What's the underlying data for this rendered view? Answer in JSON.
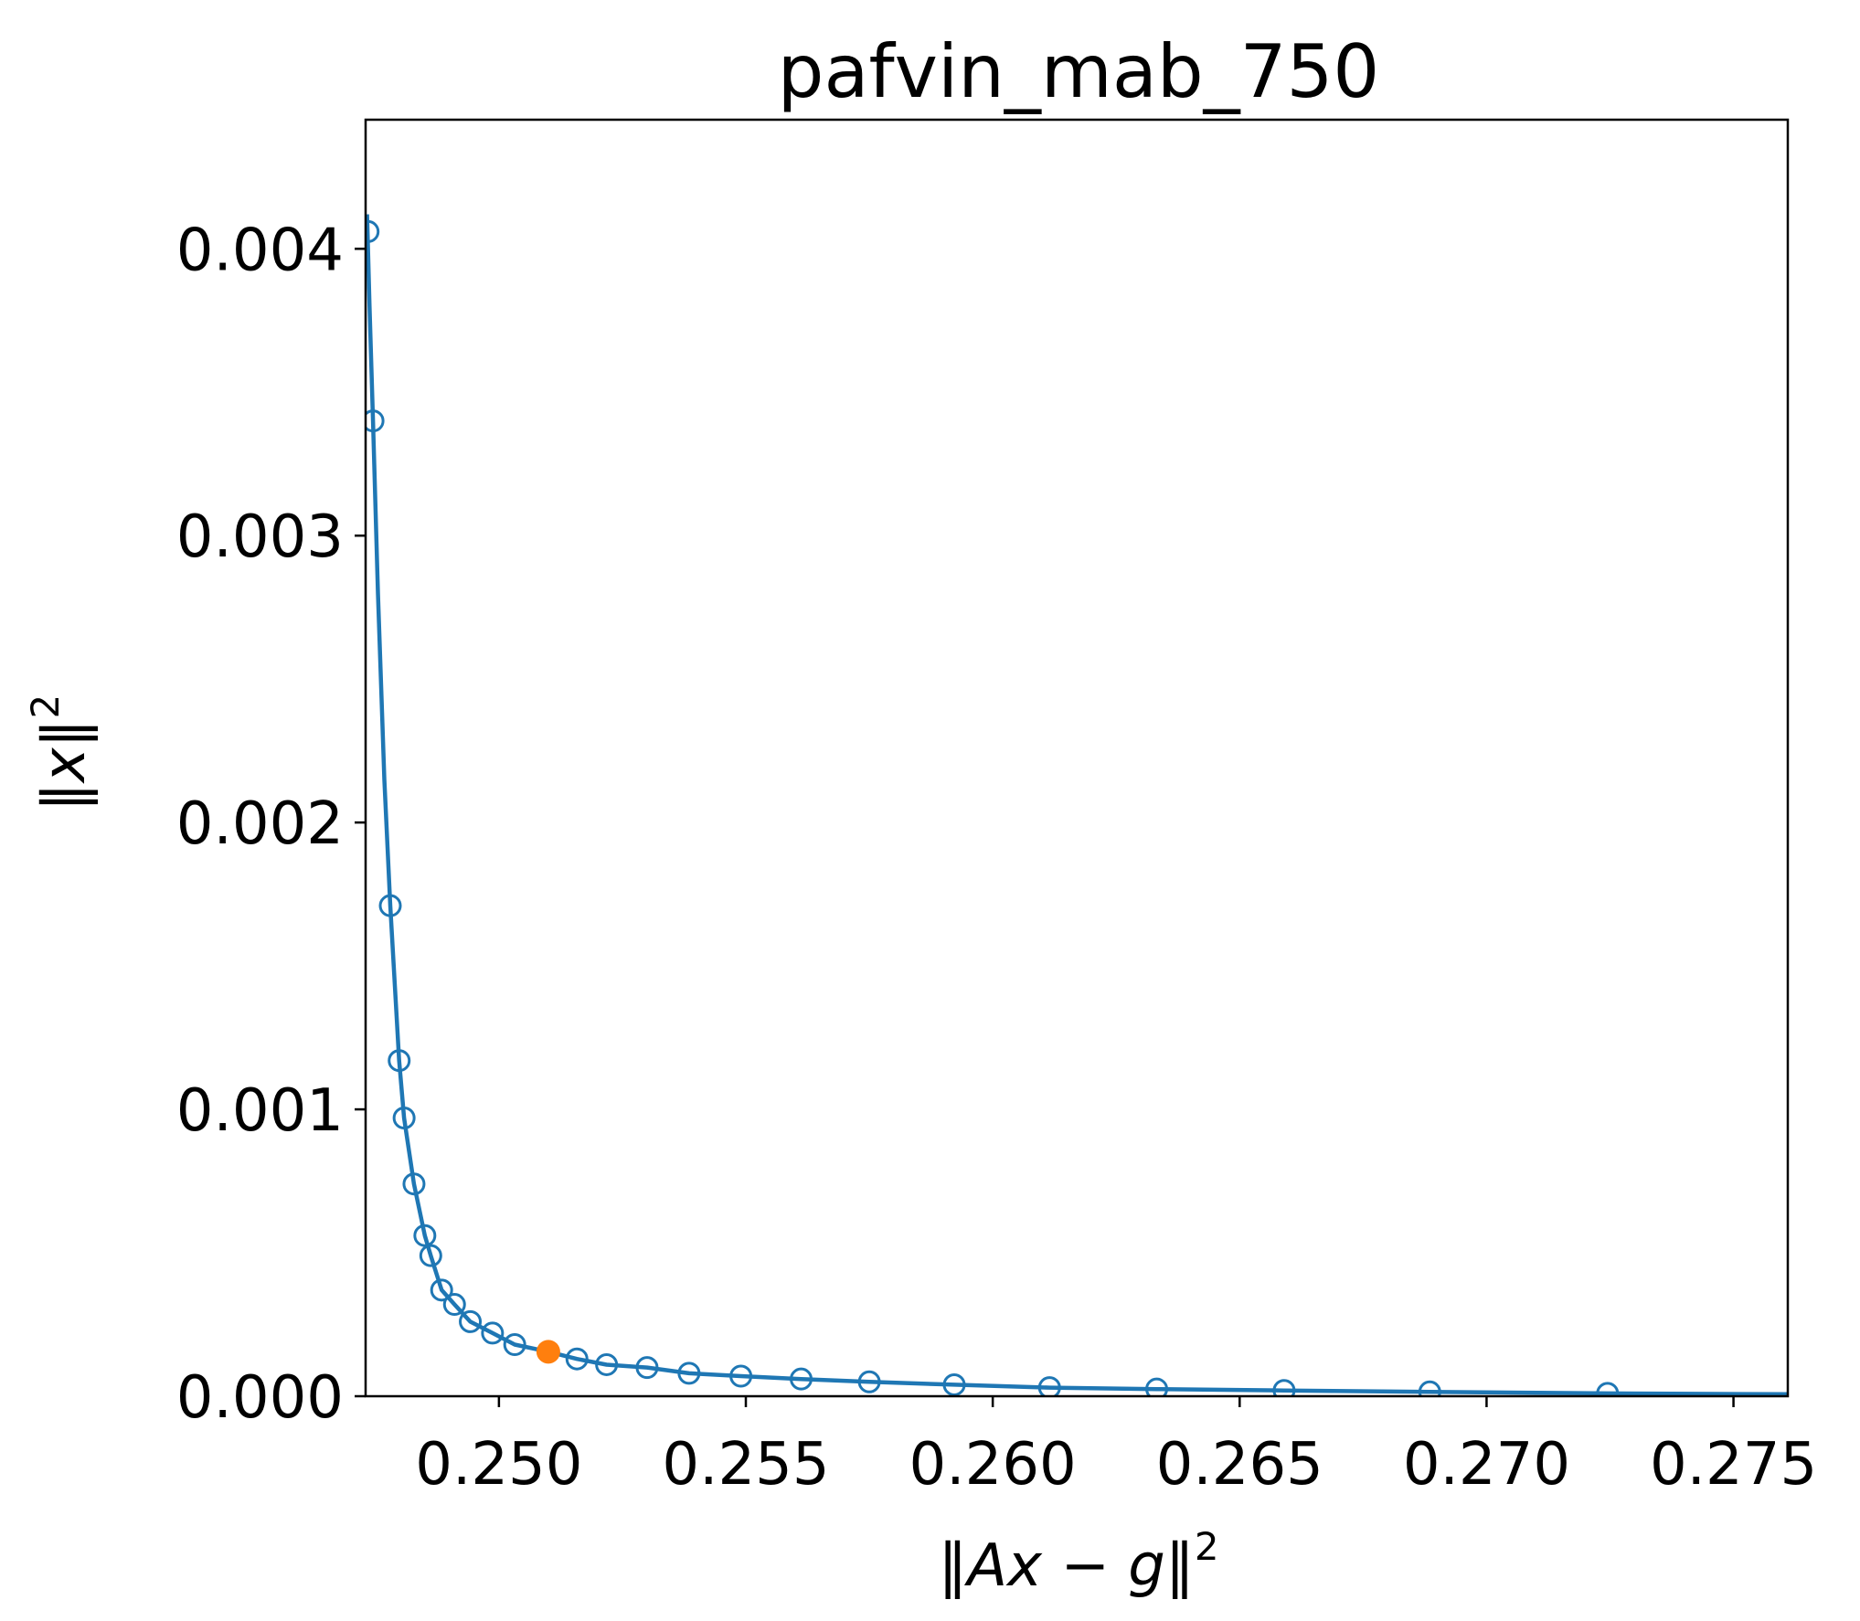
{
  "chart_data": {
    "type": "line",
    "title": "pafvin_mab_750",
    "xlabel": {
      "pre": "‖",
      "var1": "Ax",
      "minus": " − ",
      "var2": "g",
      "post": "‖",
      "sup": "2"
    },
    "ylabel": {
      "pre": "‖",
      "var1": "x",
      "post": "‖",
      "sup": "2"
    },
    "xlim": [
      0.2473,
      0.2761
    ],
    "ylim": [
      0.0,
      0.00445
    ],
    "x_ticks": [
      0.25,
      0.255,
      0.26,
      0.265,
      0.27,
      0.275
    ],
    "x_tick_labels": [
      "0.250",
      "0.255",
      "0.260",
      "0.265",
      "0.270",
      "0.275"
    ],
    "y_ticks": [
      0.0,
      0.001,
      0.002,
      0.003,
      0.004
    ],
    "y_tick_labels": [
      "0.000",
      "0.001",
      "0.002",
      "0.003",
      "0.004"
    ],
    "colors": {
      "series": "#1f77b4",
      "highlight": "#ff7f0e"
    },
    "series": [
      {
        "values": [
          {
            "x": 0.24735,
            "y": 0.00406
          },
          {
            "x": 0.24745,
            "y": 0.0034
          },
          {
            "x": 0.2478,
            "y": 0.00171
          },
          {
            "x": 0.24798,
            "y": 0.00117
          },
          {
            "x": 0.24808,
            "y": 0.00097
          },
          {
            "x": 0.24828,
            "y": 0.00074
          },
          {
            "x": 0.2485,
            "y": 0.00056
          },
          {
            "x": 0.24862,
            "y": 0.00049
          },
          {
            "x": 0.24884,
            "y": 0.00037
          },
          {
            "x": 0.2491,
            "y": 0.00032
          },
          {
            "x": 0.24942,
            "y": 0.00026
          },
          {
            "x": 0.24987,
            "y": 0.00022
          },
          {
            "x": 0.25032,
            "y": 0.00018
          },
          {
            "x": 0.25158,
            "y": 0.00013
          },
          {
            "x": 0.25218,
            "y": 0.00011
          },
          {
            "x": 0.253,
            "y": 0.0001
          },
          {
            "x": 0.25385,
            "y": 8e-05
          },
          {
            "x": 0.2549,
            "y": 7e-05
          },
          {
            "x": 0.25612,
            "y": 6e-05
          },
          {
            "x": 0.2575,
            "y": 5e-05
          },
          {
            "x": 0.25922,
            "y": 4e-05
          },
          {
            "x": 0.26115,
            "y": 3e-05
          },
          {
            "x": 0.26332,
            "y": 2.5e-05
          },
          {
            "x": 0.2659,
            "y": 2e-05
          },
          {
            "x": 0.26885,
            "y": 1.5e-05
          },
          {
            "x": 0.27245,
            "y": 1e-05
          }
        ]
      }
    ],
    "curve": [
      [
        0.24733,
        0.00412
      ],
      [
        0.24738,
        0.0038
      ],
      [
        0.24745,
        0.0034
      ],
      [
        0.24755,
        0.0028
      ],
      [
        0.24768,
        0.00215
      ],
      [
        0.2478,
        0.00171
      ],
      [
        0.24798,
        0.00117
      ],
      [
        0.24808,
        0.00097
      ],
      [
        0.24828,
        0.00074
      ],
      [
        0.2485,
        0.00056
      ],
      [
        0.24862,
        0.00049
      ],
      [
        0.24884,
        0.00037
      ],
      [
        0.2491,
        0.00032
      ],
      [
        0.24942,
        0.00026
      ],
      [
        0.24987,
        0.00022
      ],
      [
        0.25032,
        0.00018
      ],
      [
        0.251,
        0.000155
      ],
      [
        0.25158,
        0.00013
      ],
      [
        0.25218,
        0.00011
      ],
      [
        0.253,
        0.0001
      ],
      [
        0.25385,
        8e-05
      ],
      [
        0.2549,
        7e-05
      ],
      [
        0.25612,
        6e-05
      ],
      [
        0.2575,
        5e-05
      ],
      [
        0.25922,
        4e-05
      ],
      [
        0.26115,
        3e-05
      ],
      [
        0.26332,
        2.5e-05
      ],
      [
        0.2659,
        2e-05
      ],
      [
        0.26885,
        1.5e-05
      ],
      [
        0.27245,
        1e-05
      ],
      [
        0.2761,
        7e-06
      ]
    ],
    "highlight_point": {
      "x": 0.251,
      "y": 0.000155
    }
  }
}
